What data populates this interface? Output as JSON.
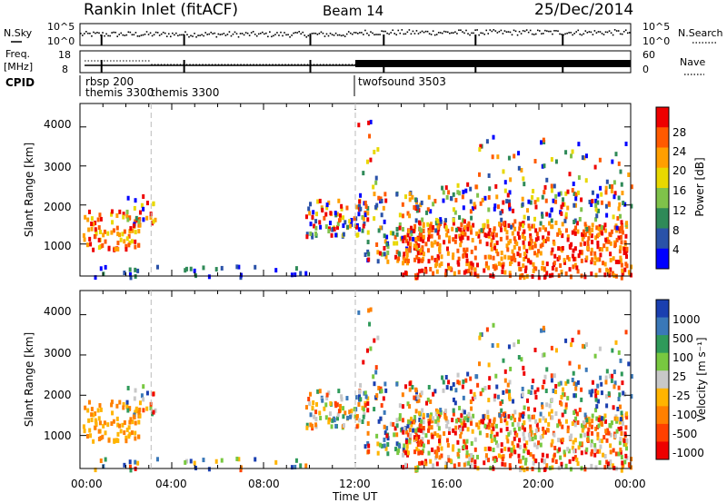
{
  "header": {
    "station_title": "Rankin Inlet (fitACF)",
    "beam_label": "Beam 14",
    "date_label": "25/Dec/2014"
  },
  "chart_data": [
    {
      "type": "line",
      "name_text": "N.Sky",
      "right_label": "N.Search",
      "left_ticks": [
        "10^5",
        "10^0"
      ],
      "right_ticks": [
        "10^5",
        "10^0"
      ],
      "y_scale": "log",
      "ylim": [
        1,
        100000
      ]
    },
    {
      "type": "line",
      "left_label_line1": "Freq.",
      "left_label_line2": "[MHz]",
      "right_label": "Nave",
      "left_ticks": [
        "18",
        "8"
      ],
      "right_ticks": [
        "60",
        "0"
      ],
      "ylim_left": [
        8,
        18
      ],
      "ylim_right": [
        0,
        60
      ]
    },
    {
      "type": "table",
      "label": "CPID",
      "programs": [
        {
          "name": "rbsp 200",
          "start_hr": 0.2
        },
        {
          "name": "themis 3300",
          "start_hr": 0.2
        },
        {
          "name": "themis 3300",
          "start_hr": 3.1
        },
        {
          "name": "twofsound 3503",
          "start_hr": 12.0
        }
      ]
    },
    {
      "type": "heatmap",
      "ylabel": "Slant Range [km]",
      "yticks": [
        "1000",
        "2000",
        "3000",
        "4000"
      ],
      "ylim": [
        180,
        4600
      ],
      "colorbar_label": "Power [dB]",
      "colorbar_ticks": [
        "4",
        "8",
        "12",
        "16",
        "20",
        "24",
        "28"
      ],
      "colors": [
        "#0000ff",
        "#2a52a8",
        "#2f8a58",
        "#7fc24a",
        "#e8d800",
        "#ff9f00",
        "#ff5a00",
        "#ee0000"
      ]
    },
    {
      "type": "heatmap",
      "ylabel": "Slant Range [km]",
      "yticks": [
        "1000",
        "2000",
        "3000",
        "4000"
      ],
      "ylim": [
        180,
        4600
      ],
      "colorbar_label": "Velocity [m s⁻¹]",
      "colorbar_ticks": [
        "1000",
        "500",
        "100",
        "25",
        "-25",
        "-100",
        "-500",
        "-1000"
      ],
      "colors": [
        "#1a3fb0",
        "#3a78b8",
        "#2f9a5a",
        "#78c840",
        "#c8c8c8",
        "#ffb400",
        "#ff8000",
        "#ff4000",
        "#ee0000"
      ]
    }
  ],
  "x_axis": {
    "xlabel": "Time UT",
    "ticks": [
      "00:00",
      "04:00",
      "08:00",
      "12:00",
      "16:00",
      "20:00",
      "00:00"
    ],
    "xlim_hours": [
      0,
      24
    ]
  }
}
